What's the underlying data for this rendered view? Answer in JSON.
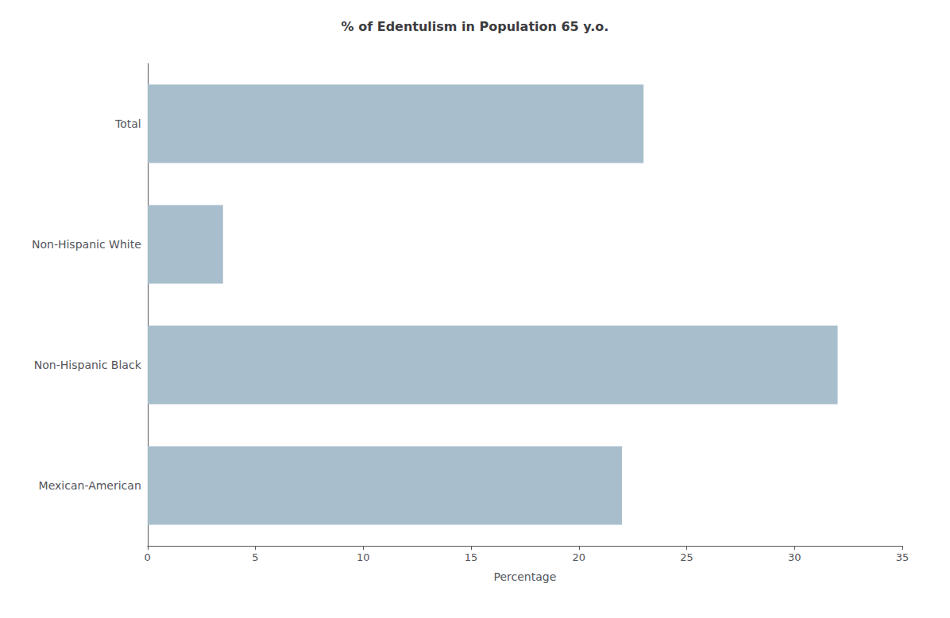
{
  "chart_data": {
    "type": "bar",
    "orientation": "horizontal",
    "title": "% of Edentulism in Population 65 y.o.",
    "categories": [
      "Mexican-American",
      "Non-Hispanic Black",
      "Non-Hispanic White",
      "Total"
    ],
    "values": [
      22,
      32,
      3.5,
      23
    ],
    "color": "#a8becd",
    "xlabel": "Percentage",
    "xlim": [
      0,
      35
    ],
    "xticks": [
      0,
      5,
      10,
      15,
      20,
      25,
      30,
      35
    ],
    "grid": false
  }
}
